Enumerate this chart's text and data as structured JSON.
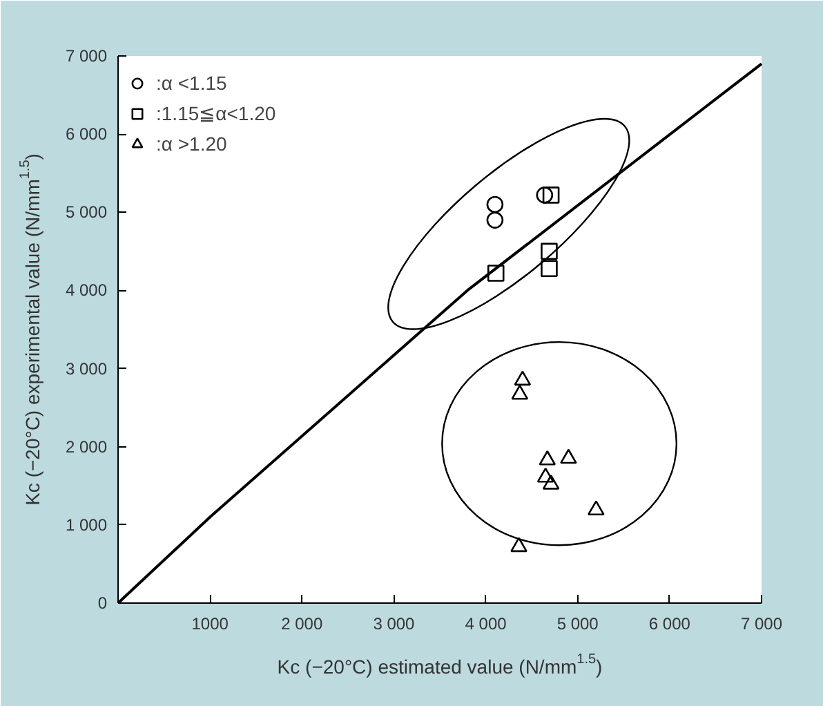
{
  "chart_data": {
    "type": "scatter",
    "xlabel": "Kc (−20°C) estimated value (N/mm$^{1.5}$)",
    "ylabel": "Kc (−20°C) experimental value (N/mm$^{1.5}$)",
    "xlim": [
      0,
      7000
    ],
    "ylim": [
      0,
      7000
    ],
    "xticks": [
      1000,
      {
        "value": 2000,
        "label": "2 000"
      },
      {
        "value": 3000,
        "label": "3 000"
      },
      {
        "value": 4000,
        "label": "4 000"
      },
      {
        "value": 5000,
        "label": "5 000"
      },
      {
        "value": 6000,
        "label": "6 000"
      },
      {
        "value": 7000,
        "label": "7 000"
      }
    ],
    "yticks": [
      0,
      {
        "value": 1000,
        "label": "1 000"
      },
      {
        "value": 2000,
        "label": "2 000"
      },
      {
        "value": 3000,
        "label": "3 000"
      },
      {
        "value": 4000,
        "label": "4 000"
      },
      {
        "value": 5000,
        "label": "5 000"
      },
      {
        "value": 6000,
        "label": "6 000"
      },
      {
        "value": 7000,
        "label": "7 000"
      }
    ],
    "grid": false,
    "legend": "top left",
    "series": [
      {
        "name": ":α <1.15",
        "color": "#000000",
        "marker": "circle",
        "x": [
          4100,
          4100,
          4640
        ],
        "values": [
          5100,
          4900,
          5220
        ]
      },
      {
        "name": ":1.15≦α<1.20",
        "color": "#000000",
        "marker": "square",
        "x": [
          4110,
          4710,
          4690,
          4690
        ],
        "values": [
          4220,
          5220,
          4500,
          4280
        ]
      },
      {
        "name": ":α >1.20",
        "color": "#000000",
        "marker": "triangle",
        "x": [
          4400,
          4370,
          4670,
          4900,
          4650,
          4710,
          5200,
          4360
        ],
        "values": [
          2850,
          2670,
          1830,
          1850,
          1610,
          1520,
          1190,
          720
        ]
      },
      {
        "type": "line",
        "color": "#000000",
        "marker": "none",
        "x": [
          0,
          1000,
          3800,
          7000
        ],
        "values": [
          0,
          1100,
          4000,
          6900
        ]
      }
    ]
  }
}
